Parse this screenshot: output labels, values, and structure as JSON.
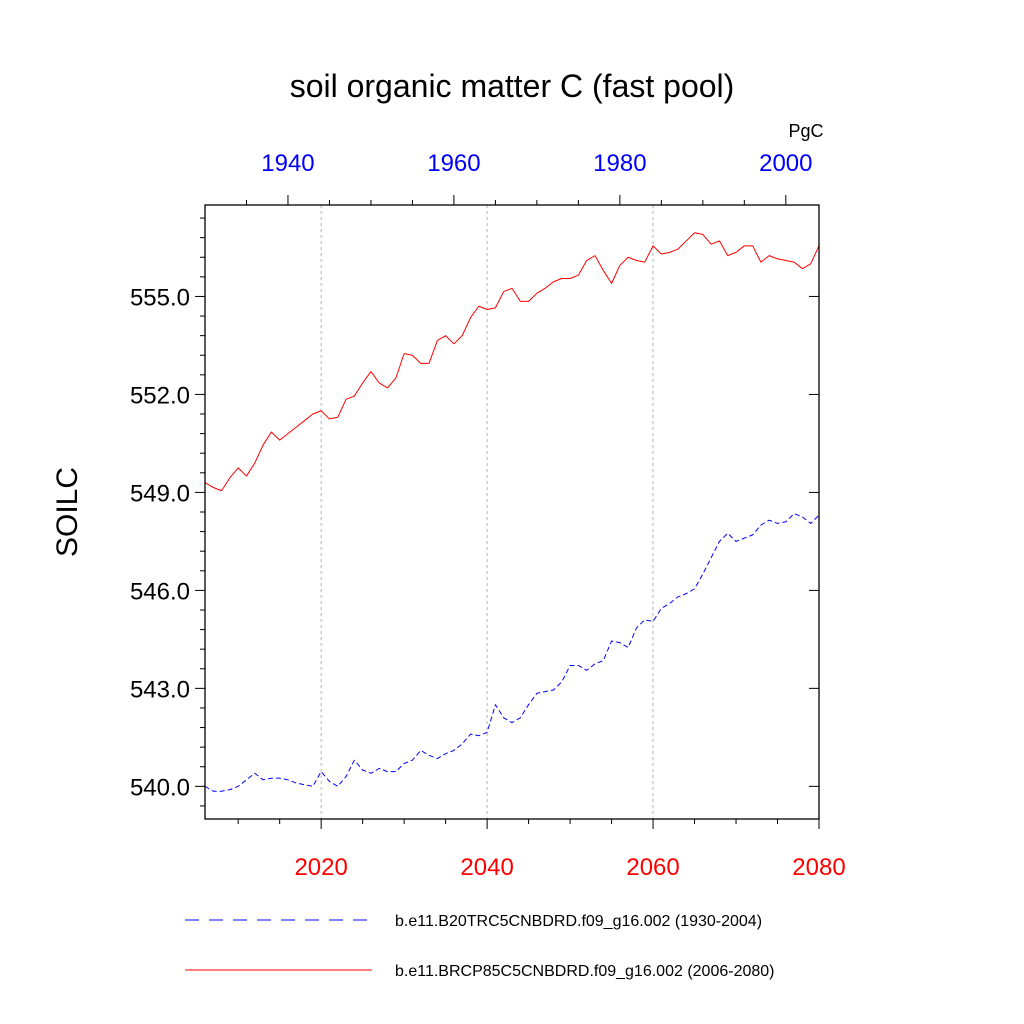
{
  "chart_data": {
    "type": "line",
    "title": "soil organic matter C (fast pool)",
    "ylabel": "SOILC",
    "units": "PgC",
    "ylim": [
      539.0,
      557.8
    ],
    "y_ticks": [
      540.0,
      543.0,
      546.0,
      549.0,
      552.0,
      555.0
    ],
    "y_tick_labels": [
      "540.0",
      "543.0",
      "546.0",
      "549.0",
      "552.0",
      "555.0"
    ],
    "grid": "vertical dotted at bottom-axis major ticks",
    "bottom_axis": {
      "xlim": [
        2006,
        2080
      ],
      "ticks": [
        2020,
        2040,
        2060,
        2080
      ],
      "tick_labels": [
        "2020",
        "2040",
        "2060",
        "2080"
      ],
      "color": "#ff0000"
    },
    "top_axis": {
      "xlim": [
        1930,
        2004
      ],
      "ticks": [
        1940,
        1960,
        1980,
        2000
      ],
      "tick_labels": [
        "1940",
        "1960",
        "1980",
        "2000"
      ],
      "color": "#0000ff"
    },
    "series": [
      {
        "name": "b.e11.B20TRC5CNBDRD.f09_g16.002 (1930-2004)",
        "axis": "top",
        "color": "#0000ff",
        "dash": "dashed",
        "x": [
          1930,
          1931,
          1932,
          1933,
          1934,
          1935,
          1936,
          1937,
          1938,
          1939,
          1940,
          1941,
          1942,
          1943,
          1944,
          1945,
          1946,
          1947,
          1948,
          1949,
          1950,
          1951,
          1952,
          1953,
          1954,
          1955,
          1956,
          1957,
          1958,
          1959,
          1960,
          1961,
          1962,
          1963,
          1964,
          1965,
          1966,
          1967,
          1968,
          1969,
          1970,
          1971,
          1972,
          1973,
          1974,
          1975,
          1976,
          1977,
          1978,
          1979,
          1980,
          1981,
          1982,
          1983,
          1984,
          1985,
          1986,
          1987,
          1988,
          1989,
          1990,
          1991,
          1992,
          1993,
          1994,
          1995,
          1996,
          1997,
          1998,
          1999,
          2000,
          2001,
          2002,
          2003,
          2004
        ],
        "values": [
          540.0,
          539.85,
          539.85,
          539.9,
          540.0,
          540.2,
          540.4,
          540.2,
          540.25,
          540.25,
          540.2,
          540.1,
          540.05,
          540.0,
          540.45,
          540.15,
          540.0,
          540.3,
          540.8,
          540.5,
          540.4,
          540.55,
          540.45,
          540.45,
          540.7,
          540.8,
          541.1,
          540.95,
          540.85,
          541.0,
          541.1,
          541.3,
          541.6,
          541.55,
          541.65,
          542.5,
          542.1,
          541.95,
          542.1,
          542.5,
          542.85,
          542.9,
          542.95,
          543.2,
          543.7,
          543.7,
          543.55,
          543.75,
          543.85,
          544.45,
          544.4,
          544.25,
          544.85,
          545.1,
          545.05,
          545.45,
          545.6,
          545.8,
          545.9,
          546.05,
          546.5,
          547.0,
          547.5,
          547.75,
          547.5,
          547.6,
          547.7,
          548.0,
          548.15,
          548.05,
          548.1,
          548.35,
          548.25,
          548.05,
          548.3
        ]
      },
      {
        "name": "b.e11.BRCP85C5CNBDRD.f09_g16.002 (2006-2080)",
        "axis": "bottom",
        "color": "#ff0000",
        "dash": "solid",
        "x": [
          2006,
          2007,
          2008,
          2009,
          2010,
          2011,
          2012,
          2013,
          2014,
          2015,
          2016,
          2017,
          2018,
          2019,
          2020,
          2021,
          2022,
          2023,
          2024,
          2025,
          2026,
          2027,
          2028,
          2029,
          2030,
          2031,
          2032,
          2033,
          2034,
          2035,
          2036,
          2037,
          2038,
          2039,
          2040,
          2041,
          2042,
          2043,
          2044,
          2045,
          2046,
          2047,
          2048,
          2049,
          2050,
          2051,
          2052,
          2053,
          2054,
          2055,
          2056,
          2057,
          2058,
          2059,
          2060,
          2061,
          2062,
          2063,
          2064,
          2065,
          2066,
          2067,
          2068,
          2069,
          2070,
          2071,
          2072,
          2073,
          2074,
          2075,
          2076,
          2077,
          2078,
          2079,
          2080
        ],
        "values": [
          549.3,
          549.15,
          549.05,
          549.45,
          549.75,
          549.5,
          549.9,
          550.45,
          550.85,
          550.6,
          550.8,
          551.0,
          551.2,
          551.4,
          551.5,
          551.25,
          551.3,
          551.85,
          551.95,
          552.35,
          552.7,
          552.35,
          552.2,
          552.5,
          553.25,
          553.2,
          552.95,
          552.95,
          553.65,
          553.8,
          553.55,
          553.8,
          554.35,
          554.7,
          554.6,
          554.65,
          555.15,
          555.25,
          554.85,
          554.85,
          555.1,
          555.25,
          555.45,
          555.55,
          555.55,
          555.65,
          556.1,
          556.25,
          555.8,
          555.4,
          555.95,
          556.2,
          556.1,
          556.05,
          556.55,
          556.3,
          556.35,
          556.45,
          556.7,
          556.95,
          556.9,
          556.6,
          556.7,
          556.25,
          556.35,
          556.55,
          556.55,
          556.05,
          556.25,
          556.15,
          556.1,
          556.05,
          555.85,
          556.0,
          556.55
        ]
      }
    ]
  }
}
